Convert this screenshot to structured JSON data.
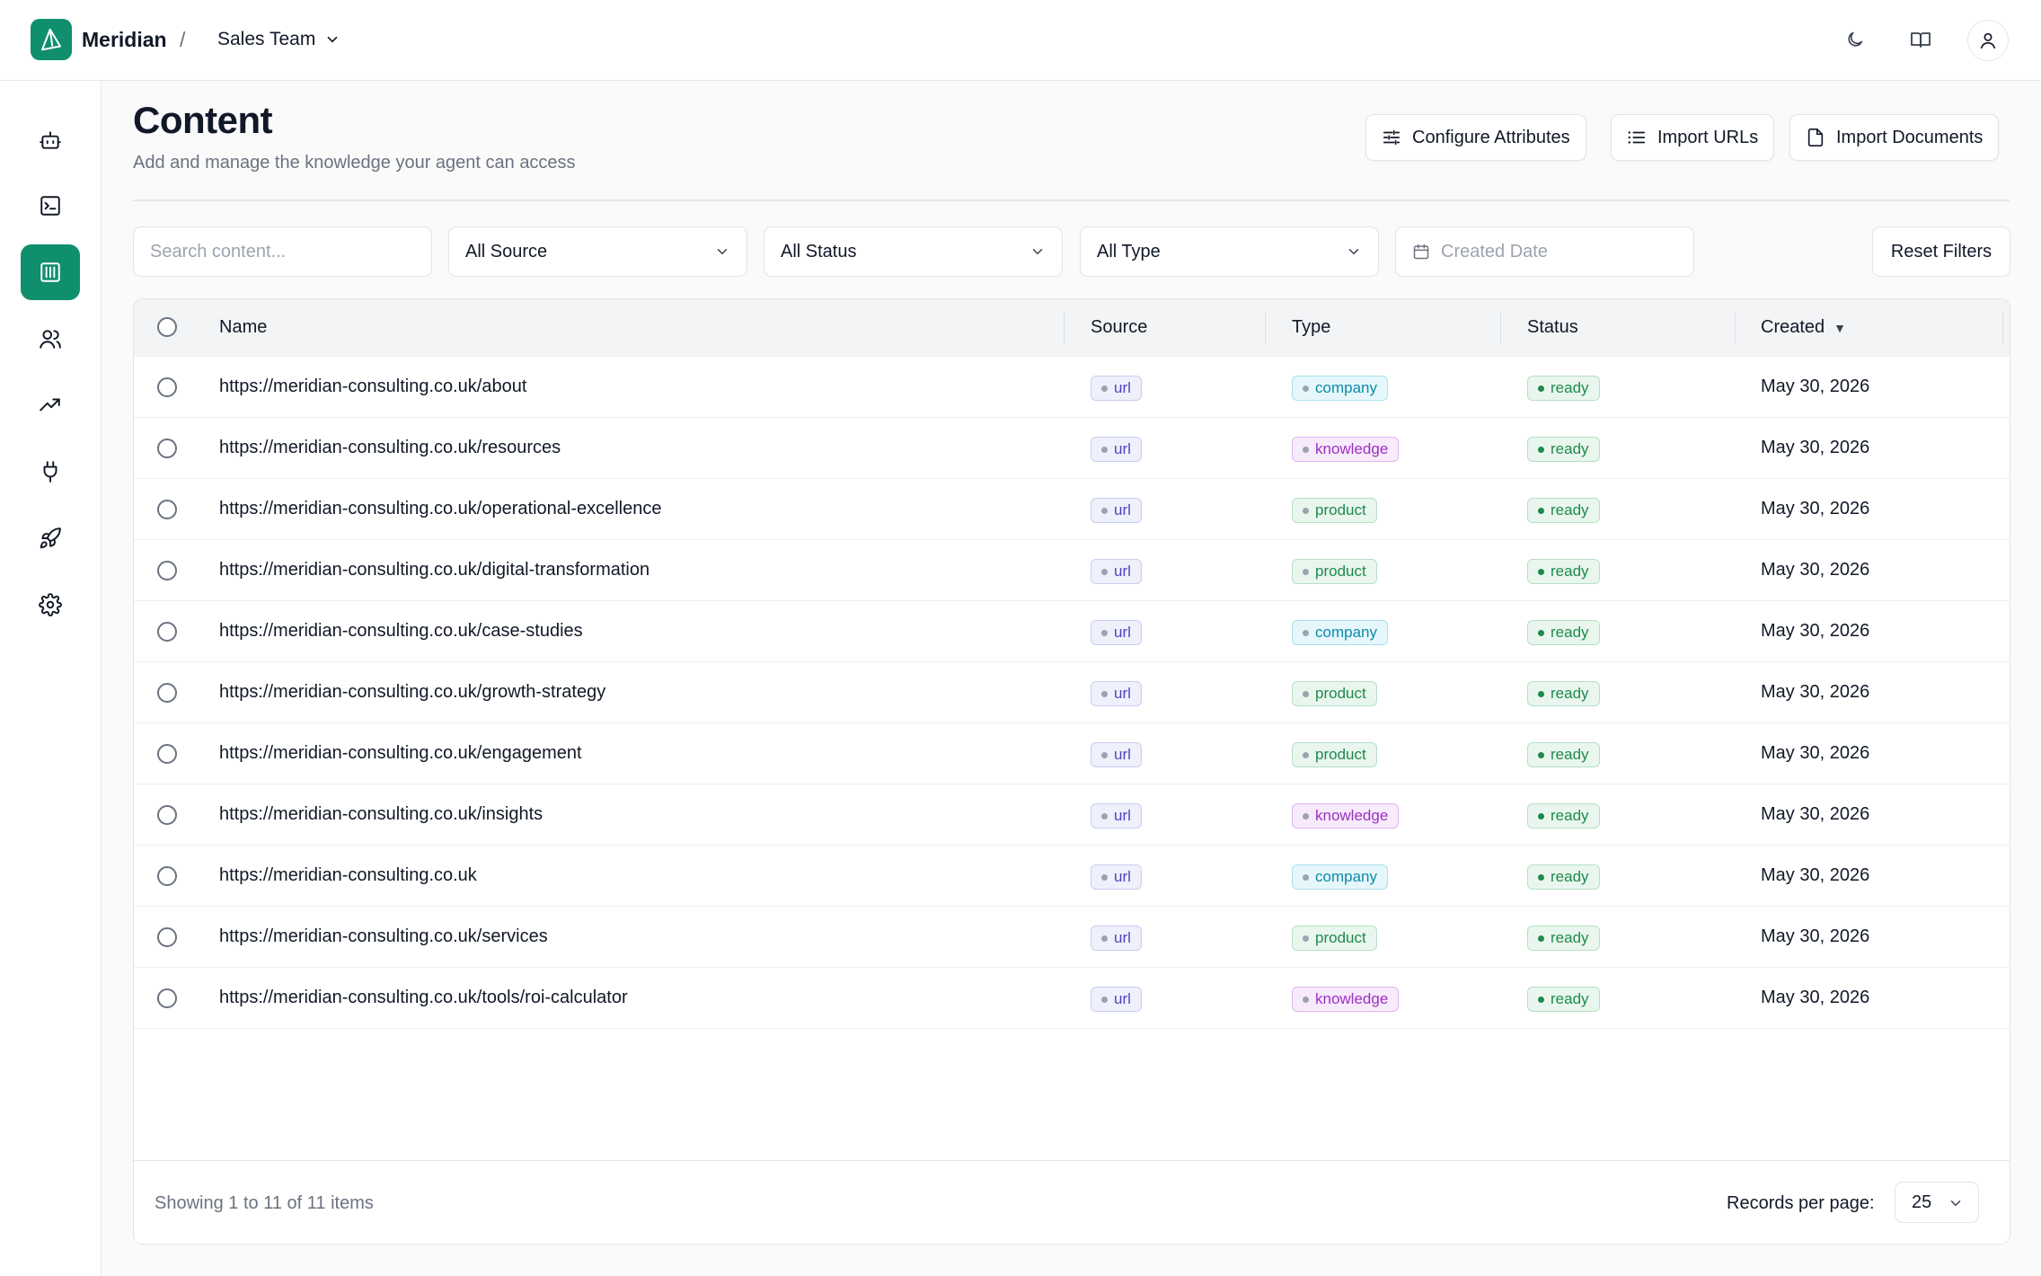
{
  "app": {
    "brand": "Meridian",
    "separator": "/",
    "team": "Sales Team"
  },
  "page": {
    "title": "Content",
    "subtitle": "Add and manage the knowledge your agent can access",
    "actions": {
      "configure": "Configure Attributes",
      "import_urls": "Import URLs",
      "import_documents": "Import Documents"
    }
  },
  "filters": {
    "search_placeholder": "Search content...",
    "source": "All Source",
    "status": "All Status",
    "type": "All Type",
    "date_placeholder": "Created Date",
    "reset": "Reset Filters"
  },
  "table": {
    "columns": {
      "name": "Name",
      "source": "Source",
      "type": "Type",
      "status": "Status",
      "created": "Created"
    },
    "sort_indicator": "▼",
    "rows": [
      {
        "name": "https://meridian-consulting.co.uk/about",
        "source": "url",
        "type": "company",
        "status": "ready",
        "created": "May 30, 2026"
      },
      {
        "name": "https://meridian-consulting.co.uk/resources",
        "source": "url",
        "type": "knowledge",
        "status": "ready",
        "created": "May 30, 2026"
      },
      {
        "name": "https://meridian-consulting.co.uk/operational-excellence",
        "source": "url",
        "type": "product",
        "status": "ready",
        "created": "May 30, 2026"
      },
      {
        "name": "https://meridian-consulting.co.uk/digital-transformation",
        "source": "url",
        "type": "product",
        "status": "ready",
        "created": "May 30, 2026"
      },
      {
        "name": "https://meridian-consulting.co.uk/case-studies",
        "source": "url",
        "type": "company",
        "status": "ready",
        "created": "May 30, 2026"
      },
      {
        "name": "https://meridian-consulting.co.uk/growth-strategy",
        "source": "url",
        "type": "product",
        "status": "ready",
        "created": "May 30, 2026"
      },
      {
        "name": "https://meridian-consulting.co.uk/engagement",
        "source": "url",
        "type": "product",
        "status": "ready",
        "created": "May 30, 2026"
      },
      {
        "name": "https://meridian-consulting.co.uk/insights",
        "source": "url",
        "type": "knowledge",
        "status": "ready",
        "created": "May 30, 2026"
      },
      {
        "name": "https://meridian-consulting.co.uk",
        "source": "url",
        "type": "company",
        "status": "ready",
        "created": "May 30, 2026"
      },
      {
        "name": "https://meridian-consulting.co.uk/services",
        "source": "url",
        "type": "product",
        "status": "ready",
        "created": "May 30, 2026"
      },
      {
        "name": "https://meridian-consulting.co.uk/tools/roi-calculator",
        "source": "url",
        "type": "knowledge",
        "status": "ready",
        "created": "May 30, 2026"
      }
    ]
  },
  "footer": {
    "showing": "Showing 1 to 11 of 11 items",
    "records_label": "Records per page:",
    "records_value": "25"
  },
  "colors": {
    "accent": "#0f8f6e",
    "url": {
      "bg": "#eef0fb",
      "border": "#c9cdf0",
      "text": "#4f46b8",
      "dot": "#9ca3af"
    },
    "company": {
      "bg": "#e6f7fb",
      "border": "#a9e1ef",
      "text": "#0e8aa8",
      "dot": "#9ca3af"
    },
    "knowledge": {
      "bg": "#f7ebfb",
      "border": "#e0b4f0",
      "text": "#9b2fc2",
      "dot": "#9ca3af"
    },
    "product": {
      "bg": "#e9f6ee",
      "border": "#b5e0c4",
      "text": "#1f8a4c",
      "dot": "#9ca3af"
    },
    "ready": {
      "bg": "#e9f6ee",
      "border": "#b5e0c4",
      "text": "#1f8a4c",
      "dot": "#1f8a4c"
    }
  },
  "icons": {
    "top": [
      "moon-icon",
      "book-icon",
      "user-icon"
    ],
    "sidebar": [
      "bot-icon",
      "terminal-icon",
      "library-icon",
      "users-icon",
      "trending-icon",
      "plug-icon",
      "rocket-icon",
      "settings-icon"
    ]
  }
}
